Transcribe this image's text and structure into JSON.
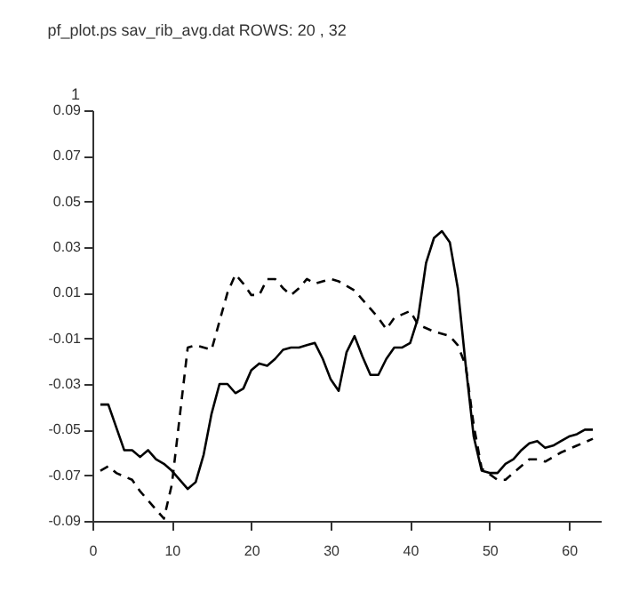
{
  "chart_data": {
    "type": "line",
    "title": "pf_plot.ps    sav_rib_avg.dat    ROWS: 20  , 32",
    "annotations": [
      "1"
    ],
    "xlim": [
      0,
      64
    ],
    "xticks": [
      0,
      10,
      20,
      30,
      40,
      50,
      60
    ],
    "ylim": [
      -0.09,
      0.09
    ],
    "yticks": [
      -0.09,
      -0.07,
      -0.05,
      -0.03,
      -0.01,
      0.01,
      0.03,
      0.05,
      0.07,
      0.09
    ],
    "series": [
      {
        "color": "#000000",
        "line_style": "solid",
        "x": [
          1,
          2,
          4,
          5,
          6,
          7,
          8,
          9,
          10,
          11,
          12,
          13,
          14,
          15,
          16,
          17,
          18,
          19,
          20,
          21,
          22,
          23,
          24,
          25,
          26,
          27,
          28,
          29,
          30,
          31,
          32,
          33,
          34,
          35,
          36,
          37,
          38,
          39,
          40,
          41,
          42,
          43,
          44,
          45,
          46,
          47,
          48,
          49,
          50,
          51,
          52,
          53,
          54,
          55,
          56,
          57,
          58,
          59,
          60,
          61,
          62,
          63
        ],
        "values": [
          -0.039,
          -0.039,
          -0.059,
          -0.059,
          -0.062,
          -0.059,
          -0.063,
          -0.065,
          -0.068,
          -0.072,
          -0.076,
          -0.073,
          -0.061,
          -0.043,
          -0.03,
          -0.03,
          -0.034,
          -0.032,
          -0.024,
          -0.021,
          -0.022,
          -0.019,
          -0.015,
          -0.014,
          -0.014,
          -0.013,
          -0.012,
          -0.019,
          -0.028,
          -0.033,
          -0.016,
          -0.009,
          -0.018,
          -0.026,
          -0.026,
          -0.019,
          -0.014,
          -0.014,
          -0.012,
          -0.001,
          0.023,
          0.034,
          0.037,
          0.032,
          0.012,
          -0.022,
          -0.053,
          -0.068,
          -0.069,
          -0.069,
          -0.065,
          -0.063,
          -0.059,
          -0.056,
          -0.055,
          -0.058,
          -0.057,
          -0.055,
          -0.053,
          -0.052,
          -0.05,
          -0.05
        ]
      },
      {
        "color": "#000000",
        "line_style": "dashed",
        "x": [
          1,
          2,
          3,
          5,
          6,
          7,
          8,
          9,
          10,
          11,
          12,
          13,
          15,
          17,
          18,
          19,
          20,
          21,
          22,
          23,
          24,
          25,
          26,
          27,
          28,
          29,
          30,
          31,
          33,
          34,
          36,
          37,
          38,
          40,
          41,
          43,
          45,
          46,
          47,
          48,
          49,
          51,
          52,
          53,
          55,
          56,
          57,
          59,
          61,
          63
        ],
        "values": [
          -0.068,
          -0.066,
          -0.069,
          -0.072,
          -0.077,
          -0.081,
          -0.085,
          -0.089,
          -0.074,
          -0.044,
          -0.014,
          -0.013,
          -0.015,
          0.01,
          0.018,
          0.014,
          0.009,
          0.009,
          0.016,
          0.016,
          0.012,
          0.009,
          0.012,
          0.016,
          0.014,
          0.015,
          0.016,
          0.015,
          0.011,
          0.007,
          -0.001,
          -0.006,
          -0.001,
          0.002,
          -0.004,
          -0.007,
          -0.009,
          -0.013,
          -0.022,
          -0.048,
          -0.067,
          -0.072,
          -0.072,
          -0.069,
          -0.063,
          -0.063,
          -0.064,
          -0.06,
          -0.057,
          -0.054
        ]
      }
    ]
  }
}
